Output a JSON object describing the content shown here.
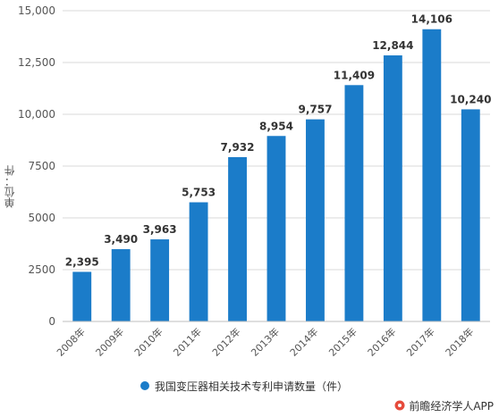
{
  "chart_data": {
    "type": "bar",
    "categories": [
      "2008年",
      "2009年",
      "2010年",
      "2011年",
      "2012年",
      "2013年",
      "2014年",
      "2015年",
      "2016年",
      "2017年",
      "2018年"
    ],
    "series": [
      {
        "name": "我国变压器相关技术专利申请数量（件）",
        "values": [
          2395,
          3490,
          3963,
          5753,
          7932,
          8954,
          9757,
          11409,
          12844,
          14106,
          10240
        ]
      }
    ],
    "data_labels": [
      "2,395",
      "3,490",
      "3,963",
      "5,753",
      "7,932",
      "8,954",
      "9,757",
      "11,409",
      "12,844",
      "14,106",
      "10,240"
    ],
    "yticks": [
      0,
      2500,
      5000,
      7500,
      10000,
      12500,
      15000
    ],
    "ytick_labels": [
      "0",
      "2500",
      "5000",
      "7500",
      "10,000",
      "12,500",
      "15,000"
    ],
    "ylim": [
      0,
      15000
    ],
    "ylabel": "单位：件",
    "xlabel": "",
    "title": "",
    "grid": true,
    "legend": "bottom-center",
    "bar_color": "#1b7cc9",
    "gridline_color": "#d9d9d9"
  },
  "legend": {
    "label": "我国变压器相关技术专利申请数量（件）"
  },
  "footer": {
    "source": "前瞻经济学人APP"
  }
}
